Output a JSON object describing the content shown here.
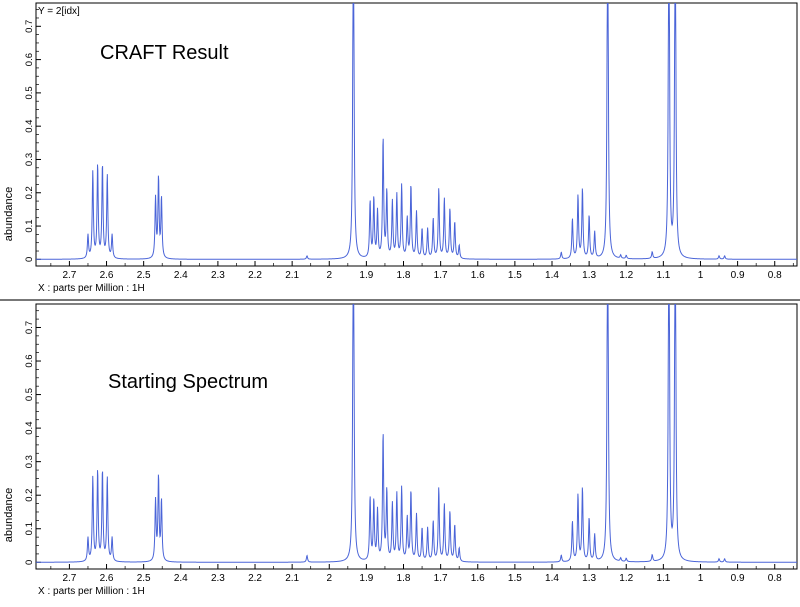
{
  "chart_data": [
    {
      "type": "line",
      "title": "CRAFT Result",
      "corner_label": "Y = 2[idx]",
      "xlabel": "X : parts per Million : 1H",
      "ylabel": "abundance",
      "xlim": [
        2.79,
        0.74
      ],
      "ylim": [
        -0.02,
        0.77
      ],
      "x_ticks": [
        2.7,
        2.6,
        2.5,
        2.4,
        2.3,
        2.2,
        2.1,
        2.0,
        1.9,
        1.8,
        1.7,
        1.6,
        1.5,
        1.4,
        1.3,
        1.2,
        1.1,
        1.0,
        0.9,
        0.8
      ],
      "y_ticks": [
        0,
        0.1,
        0.2,
        0.3,
        0.4,
        0.5,
        0.6,
        0.7
      ],
      "line_color": "#4a64d8",
      "peaks": [
        {
          "x": 2.65,
          "y": 0.07
        },
        {
          "x": 2.637,
          "y": 0.26
        },
        {
          "x": 2.624,
          "y": 0.28
        },
        {
          "x": 2.611,
          "y": 0.28
        },
        {
          "x": 2.598,
          "y": 0.25
        },
        {
          "x": 2.585,
          "y": 0.07
        },
        {
          "x": 2.468,
          "y": 0.18
        },
        {
          "x": 2.46,
          "y": 0.24
        },
        {
          "x": 2.452,
          "y": 0.18
        },
        {
          "x": 2.06,
          "y": 0.01
        },
        {
          "x": 1.935,
          "y": 1.2
        },
        {
          "x": 1.89,
          "y": 0.17
        },
        {
          "x": 1.88,
          "y": 0.18
        },
        {
          "x": 1.87,
          "y": 0.14
        },
        {
          "x": 1.855,
          "y": 0.36
        },
        {
          "x": 1.845,
          "y": 0.2
        },
        {
          "x": 1.83,
          "y": 0.17
        },
        {
          "x": 1.818,
          "y": 0.19
        },
        {
          "x": 1.805,
          "y": 0.22
        },
        {
          "x": 1.79,
          "y": 0.12
        },
        {
          "x": 1.78,
          "y": 0.22
        },
        {
          "x": 1.765,
          "y": 0.14
        },
        {
          "x": 1.75,
          "y": 0.09
        },
        {
          "x": 1.735,
          "y": 0.09
        },
        {
          "x": 1.72,
          "y": 0.12
        },
        {
          "x": 1.705,
          "y": 0.21
        },
        {
          "x": 1.69,
          "y": 0.18
        },
        {
          "x": 1.675,
          "y": 0.15
        },
        {
          "x": 1.662,
          "y": 0.11
        },
        {
          "x": 1.65,
          "y": 0.04
        },
        {
          "x": 1.375,
          "y": 0.02
        },
        {
          "x": 1.345,
          "y": 0.12
        },
        {
          "x": 1.33,
          "y": 0.19
        },
        {
          "x": 1.318,
          "y": 0.21
        },
        {
          "x": 1.3,
          "y": 0.13
        },
        {
          "x": 1.285,
          "y": 0.08
        },
        {
          "x": 1.25,
          "y": 1.2
        },
        {
          "x": 1.215,
          "y": 0.01
        },
        {
          "x": 1.2,
          "y": 0.01
        },
        {
          "x": 1.13,
          "y": 0.02
        },
        {
          "x": 1.085,
          "y": 1.2
        },
        {
          "x": 1.068,
          "y": 1.2
        },
        {
          "x": 0.95,
          "y": 0.01
        },
        {
          "x": 0.935,
          "y": 0.01
        }
      ]
    },
    {
      "type": "line",
      "title": "Starting Spectrum",
      "xlabel": "X : parts per Million : 1H",
      "ylabel": "abundance",
      "xlim": [
        2.79,
        0.74
      ],
      "ylim": [
        -0.02,
        0.77
      ],
      "x_ticks": [
        2.7,
        2.6,
        2.5,
        2.4,
        2.3,
        2.2,
        2.1,
        2.0,
        1.9,
        1.8,
        1.7,
        1.6,
        1.5,
        1.4,
        1.3,
        1.2,
        1.1,
        1.0,
        0.9,
        0.8
      ],
      "y_ticks": [
        0,
        0.1,
        0.2,
        0.3,
        0.4,
        0.5,
        0.6,
        0.7
      ],
      "line_color": "#4a64d8",
      "peaks": [
        {
          "x": 2.65,
          "y": 0.07
        },
        {
          "x": 2.637,
          "y": 0.25
        },
        {
          "x": 2.624,
          "y": 0.27
        },
        {
          "x": 2.611,
          "y": 0.27
        },
        {
          "x": 2.598,
          "y": 0.25
        },
        {
          "x": 2.585,
          "y": 0.07
        },
        {
          "x": 2.468,
          "y": 0.18
        },
        {
          "x": 2.46,
          "y": 0.25
        },
        {
          "x": 2.452,
          "y": 0.18
        },
        {
          "x": 2.06,
          "y": 0.02
        },
        {
          "x": 1.935,
          "y": 1.2
        },
        {
          "x": 1.89,
          "y": 0.19
        },
        {
          "x": 1.88,
          "y": 0.18
        },
        {
          "x": 1.87,
          "y": 0.15
        },
        {
          "x": 1.855,
          "y": 0.38
        },
        {
          "x": 1.845,
          "y": 0.21
        },
        {
          "x": 1.83,
          "y": 0.17
        },
        {
          "x": 1.818,
          "y": 0.2
        },
        {
          "x": 1.805,
          "y": 0.22
        },
        {
          "x": 1.79,
          "y": 0.13
        },
        {
          "x": 1.78,
          "y": 0.21
        },
        {
          "x": 1.765,
          "y": 0.14
        },
        {
          "x": 1.75,
          "y": 0.1
        },
        {
          "x": 1.735,
          "y": 0.1
        },
        {
          "x": 1.72,
          "y": 0.12
        },
        {
          "x": 1.705,
          "y": 0.22
        },
        {
          "x": 1.69,
          "y": 0.17
        },
        {
          "x": 1.675,
          "y": 0.15
        },
        {
          "x": 1.662,
          "y": 0.11
        },
        {
          "x": 1.65,
          "y": 0.04
        },
        {
          "x": 1.375,
          "y": 0.02
        },
        {
          "x": 1.345,
          "y": 0.12
        },
        {
          "x": 1.33,
          "y": 0.2
        },
        {
          "x": 1.318,
          "y": 0.22
        },
        {
          "x": 1.3,
          "y": 0.13
        },
        {
          "x": 1.285,
          "y": 0.08
        },
        {
          "x": 1.25,
          "y": 1.2
        },
        {
          "x": 1.215,
          "y": 0.01
        },
        {
          "x": 1.2,
          "y": 0.01
        },
        {
          "x": 1.13,
          "y": 0.02
        },
        {
          "x": 1.085,
          "y": 1.2
        },
        {
          "x": 1.068,
          "y": 1.2
        },
        {
          "x": 0.95,
          "y": 0.01
        },
        {
          "x": 0.935,
          "y": 0.01
        }
      ]
    }
  ]
}
